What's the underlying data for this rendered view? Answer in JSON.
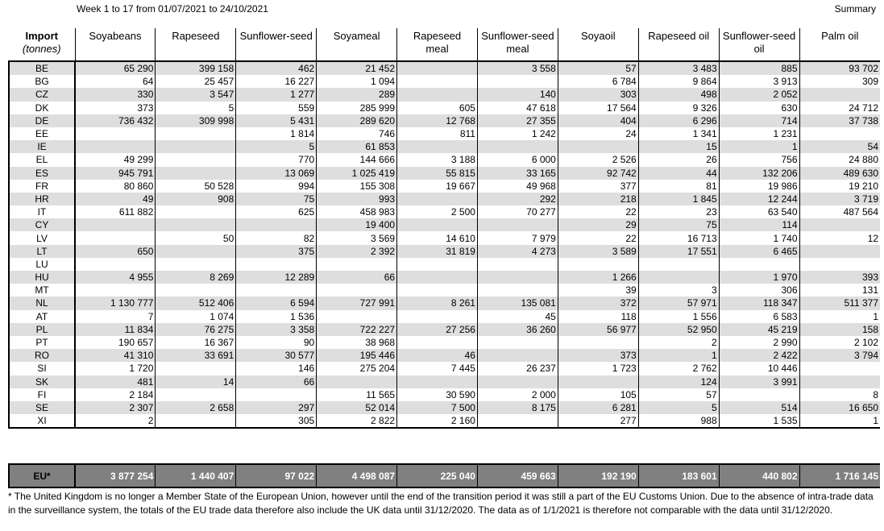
{
  "header": {
    "period": "Week 1 to 17 from 01/07/2021 to 24/10/2021",
    "summary": "Summary"
  },
  "table": {
    "corner_title": "Import",
    "corner_unit": "(tonnes)",
    "columns": [
      "Soyabeans",
      "Rapeseed",
      "Sunflower-seed",
      "Soyameal",
      "Rapeseed meal",
      "Sunflower-seed meal",
      "Soyaoil",
      "Rapeseed oil",
      "Sunflower-seed oil",
      "Palm oil"
    ],
    "rows": [
      {
        "code": "BE",
        "values": [
          "65 290",
          "399 158",
          "462",
          "21 452",
          null,
          "3 558",
          "57",
          "3 483",
          "885",
          "93 702"
        ]
      },
      {
        "code": "BG",
        "values": [
          "64",
          "25 457",
          "16 227",
          "1 094",
          null,
          null,
          "6 784",
          "9 864",
          "3 913",
          "309"
        ]
      },
      {
        "code": "CZ",
        "values": [
          "330",
          "3 547",
          "1 277",
          "289",
          null,
          "140",
          "303",
          "498",
          "2 052",
          null
        ]
      },
      {
        "code": "DK",
        "values": [
          "373",
          "5",
          "559",
          "285 999",
          "605",
          "47 618",
          "17 564",
          "9 326",
          "630",
          "24 712"
        ]
      },
      {
        "code": "DE",
        "values": [
          "736 432",
          "309 998",
          "5 431",
          "289 620",
          "12 768",
          "27 355",
          "404",
          "6 296",
          "714",
          "37 738"
        ]
      },
      {
        "code": "EE",
        "values": [
          null,
          null,
          "1 814",
          "746",
          "811",
          "1 242",
          "24",
          "1 341",
          "1 231",
          null
        ]
      },
      {
        "code": "IE",
        "values": [
          null,
          null,
          "5",
          "61 853",
          null,
          null,
          null,
          "15",
          "1",
          "54"
        ]
      },
      {
        "code": "EL",
        "values": [
          "49 299",
          null,
          "770",
          "144 666",
          "3 188",
          "6 000",
          "2 526",
          "26",
          "756",
          "24 880"
        ]
      },
      {
        "code": "ES",
        "values": [
          "945 791",
          null,
          "13 069",
          "1 025 419",
          "55 815",
          "33 165",
          "92 742",
          "44",
          "132 206",
          "489 630"
        ]
      },
      {
        "code": "FR",
        "values": [
          "80 860",
          "50 528",
          "994",
          "155 308",
          "19 667",
          "49 968",
          "377",
          "81",
          "19 986",
          "19 210"
        ]
      },
      {
        "code": "HR",
        "values": [
          "49",
          "908",
          "75",
          "993",
          null,
          "292",
          "218",
          "1 845",
          "12 244",
          "3 719"
        ]
      },
      {
        "code": "IT",
        "values": [
          "611 882",
          null,
          "625",
          "458 983",
          "2 500",
          "70 277",
          "22",
          "23",
          "63 540",
          "487 564"
        ]
      },
      {
        "code": "CY",
        "values": [
          null,
          null,
          null,
          "19 400",
          null,
          null,
          "29",
          "75",
          "114",
          null
        ]
      },
      {
        "code": "LV",
        "values": [
          null,
          "50",
          "82",
          "3 569",
          "14 610",
          "7 979",
          "22",
          "16 713",
          "1 740",
          "12"
        ]
      },
      {
        "code": "LT",
        "values": [
          "650",
          null,
          "375",
          "2 392",
          "31 819",
          "4 273",
          "3 589",
          "17 551",
          "6 465",
          null
        ]
      },
      {
        "code": "LU",
        "values": [
          null,
          null,
          null,
          null,
          null,
          null,
          null,
          null,
          null,
          null
        ]
      },
      {
        "code": "HU",
        "values": [
          "4 955",
          "8 269",
          "12 289",
          "66",
          null,
          null,
          "1 266",
          null,
          "1 970",
          "393"
        ]
      },
      {
        "code": "MT",
        "values": [
          null,
          null,
          null,
          null,
          null,
          null,
          "39",
          "3",
          "306",
          "131"
        ]
      },
      {
        "code": "NL",
        "values": [
          "1 130 777",
          "512 406",
          "6 594",
          "727 991",
          "8 261",
          "135 081",
          "372",
          "57 971",
          "118 347",
          "511 377"
        ]
      },
      {
        "code": "AT",
        "values": [
          "7",
          "1 074",
          "1 536",
          null,
          null,
          "45",
          "118",
          "1 556",
          "6 583",
          "1"
        ]
      },
      {
        "code": "PL",
        "values": [
          "11 834",
          "76 275",
          "3 358",
          "722 227",
          "27 256",
          "36 260",
          "56 977",
          "52 950",
          "45 219",
          "158"
        ]
      },
      {
        "code": "PT",
        "values": [
          "190 657",
          "16 367",
          "90",
          "38 968",
          null,
          null,
          null,
          "2",
          "2 990",
          "2 102"
        ]
      },
      {
        "code": "RO",
        "values": [
          "41 310",
          "33 691",
          "30 577",
          "195 446",
          "46",
          null,
          "373",
          "1",
          "2 422",
          "3 794"
        ]
      },
      {
        "code": "SI",
        "values": [
          "1 720",
          null,
          "146",
          "275 204",
          "7 445",
          "26 237",
          "1 723",
          "2 762",
          "10 446",
          null
        ]
      },
      {
        "code": "SK",
        "values": [
          "481",
          "14",
          "66",
          null,
          null,
          null,
          null,
          "124",
          "3 991",
          null
        ]
      },
      {
        "code": "FI",
        "values": [
          "2 184",
          null,
          null,
          "11 565",
          "30 590",
          "2 000",
          "105",
          "57",
          null,
          "8"
        ]
      },
      {
        "code": "SE",
        "values": [
          "2 307",
          "2 658",
          "297",
          "52 014",
          "7 500",
          "8 175",
          "6 281",
          "5",
          "514",
          "16 650"
        ]
      },
      {
        "code": "XI",
        "values": [
          "2",
          null,
          "305",
          "2 822",
          "2 160",
          null,
          "277",
          "988",
          "1 535",
          "1"
        ]
      }
    ],
    "total": {
      "code": "EU*",
      "values": [
        "3 877 254",
        "1 440 407",
        "97 022",
        "4 498 087",
        "225 040",
        "459 663",
        "192 190",
        "183 601",
        "440 802",
        "1 716 145"
      ]
    }
  },
  "footnote": "* The United Kingdom is no longer a Member State of the European Union, however until the end of the transition period it was still a part of the EU Customs Union. Due to the absence of intra-trade data in the surveillance system, the totals of the EU trade data  therefore also include the UK data until 31/12/2020. The data as of 1/1/2021 is therefore not comparable with the data until 31/12/2020."
}
